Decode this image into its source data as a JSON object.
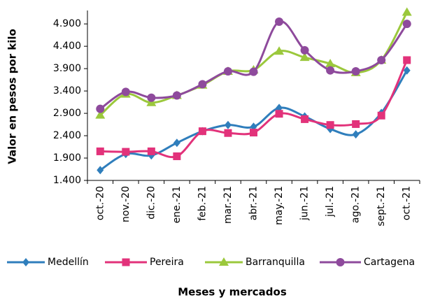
{
  "chart_data": {
    "type": "line",
    "y_label": "Valor en pesos por kilo",
    "x_label": "Meses  y mercados",
    "categories": [
      "oct.-20",
      "nov.-20",
      "dic.-20",
      "ene.-21",
      "feb.-21",
      "mar.-21",
      "abr.-21",
      "may.-21",
      "jun.-21",
      "jul.-21",
      "ago.-21",
      "sept.-21",
      "oct.-21"
    ],
    "series": [
      {
        "name": "Medellín",
        "color": "#2f7ebc",
        "marker": "diamond",
        "values": [
          1630,
          1990,
          1960,
          2240,
          2500,
          2640,
          2600,
          3020,
          2830,
          2550,
          2430,
          2910,
          3860
        ]
      },
      {
        "name": "Pereira",
        "color": "#e2327a",
        "marker": "square",
        "values": [
          2050,
          2040,
          2050,
          1940,
          2500,
          2460,
          2470,
          2890,
          2770,
          2640,
          2660,
          2850,
          4090
        ]
      },
      {
        "name": "Barranquilla",
        "color": "#9bc83c",
        "marker": "triangle",
        "values": [
          2860,
          3330,
          3140,
          3300,
          3530,
          3840,
          3870,
          4290,
          4150,
          4010,
          3810,
          4090,
          5160
        ]
      },
      {
        "name": "Cartagena",
        "color": "#8e4a9c",
        "marker": "circle",
        "values": [
          3000,
          3380,
          3250,
          3300,
          3550,
          3840,
          3830,
          4950,
          4310,
          3860,
          3840,
          4090,
          4900
        ]
      }
    ],
    "ylim": [
      1400,
      5200
    ],
    "yticks": [
      {
        "value": 1400,
        "label": "1.400"
      },
      {
        "value": 1900,
        "label": "1.900"
      },
      {
        "value": 2400,
        "label": "2.400"
      },
      {
        "value": 2900,
        "label": "2.900"
      },
      {
        "value": 3400,
        "label": "3.400"
      },
      {
        "value": 3900,
        "label": "3.900"
      },
      {
        "value": 4400,
        "label": "4.400"
      },
      {
        "value": 4900,
        "label": "4.900"
      }
    ],
    "legend": "bottom"
  }
}
